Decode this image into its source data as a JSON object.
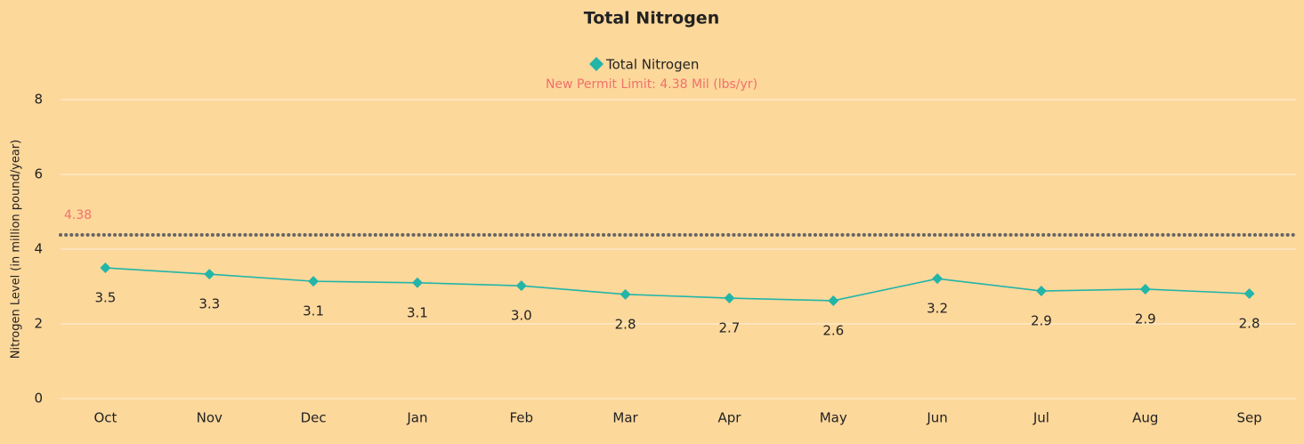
{
  "chart_data": {
    "type": "line",
    "title": "Total Nitrogen",
    "y_label": "Nitrogen Level (in million pound/year)",
    "categories": [
      "Oct",
      "Nov",
      "Dec",
      "Jan",
      "Feb",
      "Mar",
      "Apr",
      "May",
      "Jun",
      "Jul",
      "Aug",
      "Sep"
    ],
    "series": [
      {
        "name": "Total Nitrogen",
        "color": "#22b5a8",
        "values": [
          3.5,
          3.33,
          3.14,
          3.1,
          3.02,
          2.79,
          2.69,
          2.62,
          3.21,
          2.88,
          2.93,
          2.81
        ],
        "value_labels": [
          "3.5",
          "3.3",
          "3.1",
          "3.1",
          "3.0",
          "2.8",
          "2.7",
          "2.6",
          "3.2",
          "2.9",
          "2.9",
          "2.8"
        ]
      }
    ],
    "reference_line": {
      "value": 4.38,
      "color": "#666666",
      "annotation": "New Permit Limit: 4.38 Mil (lbs/yr)"
    },
    "ylim": [
      0,
      8
    ],
    "yticks": [
      0,
      2,
      4,
      6,
      8
    ],
    "grid": true,
    "legend": "top"
  }
}
